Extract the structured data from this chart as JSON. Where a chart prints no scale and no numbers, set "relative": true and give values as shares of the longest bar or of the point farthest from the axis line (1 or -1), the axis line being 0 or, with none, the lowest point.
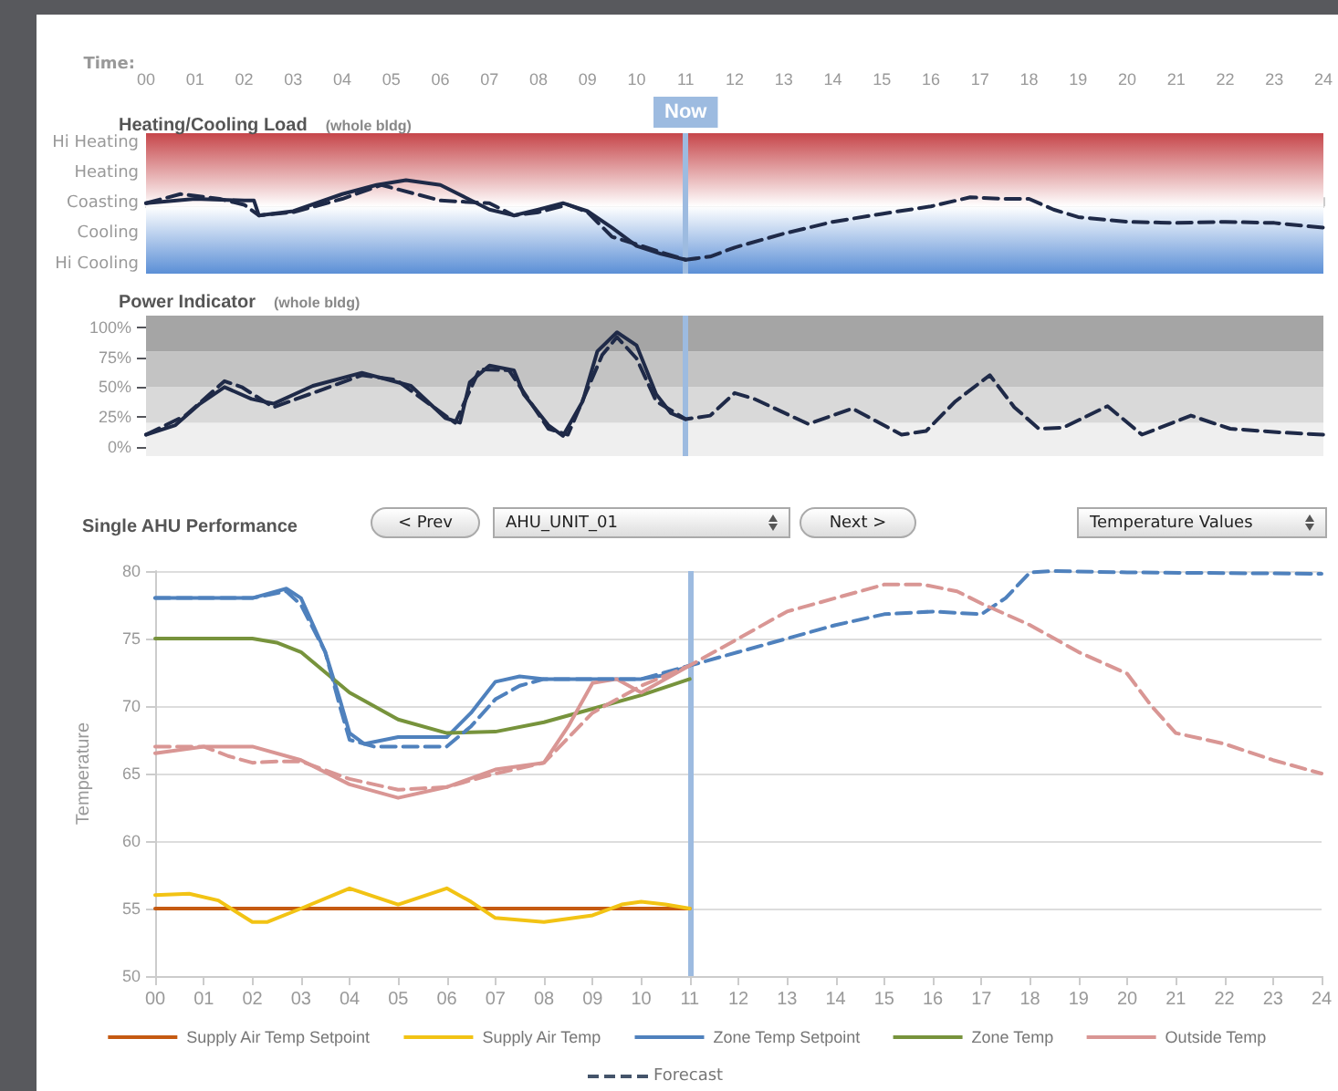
{
  "chart_data": [
    {
      "type": "line",
      "title": "Heating/Cooling Load",
      "subtitle": "(whole bldg)",
      "xlabel": "Time:",
      "xlim": [
        0,
        24
      ],
      "xticks": [
        {
          "value": 0,
          "label": "00"
        },
        {
          "value": 1,
          "label": "01"
        },
        {
          "value": 2,
          "label": "02"
        },
        {
          "value": 3,
          "label": "03"
        },
        {
          "value": 4,
          "label": "04"
        },
        {
          "value": 5,
          "label": "05"
        },
        {
          "value": 6,
          "label": "06"
        },
        {
          "value": 7,
          "label": "07"
        },
        {
          "value": 8,
          "label": "08"
        },
        {
          "value": 9,
          "label": "09"
        },
        10,
        11,
        12,
        13,
        14,
        15,
        16,
        17,
        18,
        19,
        20,
        21,
        22,
        23,
        24
      ],
      "relative": true,
      "annotations": [
        "Hi Heating",
        "Heating",
        "Coasting",
        "Cooling",
        "Hi Cooling"
      ],
      "bands": [
        {
          "axis": "y",
          "from": 0,
          "to": 1.37,
          "label": null,
          "color": "#c6464a"
        },
        {
          "axis": "y",
          "from": -1.26,
          "to": 0,
          "label": null,
          "color": "#5b8fd6"
        }
      ],
      "ref_lines": [
        {
          "axis": "x",
          "value": 11,
          "label": "Now",
          "color": "#9dbbe0"
        }
      ],
      "series": [
        {
          "color": "#1f2a48",
          "line_style": "solid",
          "x": [
            0,
            1,
            2,
            2.2,
            2.3,
            3,
            4,
            4.7,
            5.3,
            6,
            6.5,
            7,
            7.5,
            8,
            8.5,
            9,
            9.5,
            10,
            10.5,
            11
          ],
          "values": [
            0.06,
            0.14,
            0.11,
            0.11,
            -0.17,
            -0.09,
            0.23,
            0.4,
            0.49,
            0.4,
            0.17,
            -0.06,
            -0.17,
            -0.06,
            0.06,
            -0.09,
            -0.4,
            -0.74,
            -0.89,
            -1
          ]
        },
        {
          "color": "#1f2a48",
          "line_style": "dashed",
          "x": [
            0,
            0.7,
            1.5,
            2,
            2.3,
            3,
            4,
            4.8,
            5.5,
            6,
            7,
            7.5,
            8,
            8.6,
            9,
            9.5,
            10,
            10.5,
            11,
            11.5,
            12,
            13,
            14,
            15,
            16,
            16.8,
            17.5,
            18,
            18.5,
            19,
            20,
            21,
            22,
            23,
            24
          ],
          "values": [
            0.06,
            0.23,
            0.14,
            0.03,
            -0.17,
            -0.11,
            0.14,
            0.4,
            0.23,
            0.11,
            0.06,
            -0.17,
            -0.11,
            0.03,
            -0.11,
            -0.57,
            -0.71,
            -0.86,
            -1,
            -0.94,
            -0.77,
            -0.51,
            -0.29,
            -0.14,
            0,
            0.17,
            0.14,
            0.14,
            -0.06,
            -0.2,
            -0.29,
            -0.31,
            -0.29,
            -0.31,
            -0.4
          ]
        }
      ]
    },
    {
      "type": "line",
      "title": "Power Indicator",
      "subtitle": "(whole bldg)",
      "xlim": [
        0,
        24
      ],
      "tick_labels": "y",
      "ylim": [
        -8,
        110
      ],
      "yticks": [
        {
          "value": 0,
          "label": "0%"
        },
        {
          "value": 25,
          "label": "25%"
        },
        {
          "value": 50,
          "label": "50%"
        },
        {
          "value": 75,
          "label": "75%"
        },
        {
          "value": 100,
          "label": "100%"
        }
      ],
      "bands": [
        {
          "axis": "y",
          "from": -8,
          "to": 20,
          "label": null,
          "color": "#efefef"
        },
        {
          "axis": "y",
          "from": 20,
          "to": 50,
          "label": null,
          "color": "#d9d9d9"
        },
        {
          "axis": "y",
          "from": 50,
          "to": 80,
          "label": null,
          "color": "#c3c3c3"
        },
        {
          "axis": "y",
          "from": 80,
          "to": 110,
          "label": null,
          "color": "#a5a5a5"
        }
      ],
      "ref_lines": [
        {
          "axis": "x",
          "value": 11,
          "label": null,
          "color": "#9dbbe0"
        }
      ],
      "series": [
        {
          "color": "#1f2a48",
          "line_style": "solid",
          "x": [
            0,
            0.6,
            1.1,
            1.6,
            2.15,
            2.6,
            3.4,
            4.4,
            5.4,
            6.1,
            6.4,
            6.6,
            7.0,
            7.5,
            7.7,
            8.2,
            8.5,
            8.9,
            9.2,
            9.6,
            10.0,
            10.4,
            10.7,
            11
          ],
          "values": [
            10,
            18,
            36,
            50,
            40,
            36,
            51,
            62,
            51,
            24,
            20,
            54,
            68,
            64,
            44,
            18,
            9,
            38,
            80,
            96,
            85,
            44,
            28,
            23
          ]
        },
        {
          "color": "#1f2a48",
          "line_style": "dashed",
          "x": [
            0,
            0.8,
            1.6,
            1.95,
            2.6,
            4.4,
            5.1,
            6.3,
            6.8,
            7.4,
            8.2,
            8.6,
            9.3,
            9.6,
            10.0,
            10.4,
            11,
            11.5,
            12,
            12.4,
            13.5,
            14.4,
            15.4,
            15.9,
            16.5,
            17.2,
            17.7,
            18.2,
            18.7,
            19.6,
            20.3,
            21.3,
            22.1,
            23.1,
            24
          ],
          "values": [
            10,
            26,
            55,
            50,
            33,
            60,
            56,
            20,
            65,
            64,
            15,
            10,
            77,
            92,
            74,
            38,
            23,
            26,
            45,
            40,
            19,
            32,
            10,
            13,
            38,
            60,
            33,
            15,
            16,
            34,
            10,
            26,
            15,
            12,
            10
          ]
        }
      ]
    },
    {
      "type": "line",
      "title": "Single AHU Performance",
      "ylabel": "Temperature",
      "xlim": [
        0,
        24
      ],
      "xticks": [
        {
          "value": 0,
          "label": "00"
        },
        {
          "value": 1,
          "label": "01"
        },
        {
          "value": 2,
          "label": "02"
        },
        {
          "value": 3,
          "label": "03"
        },
        {
          "value": 4,
          "label": "04"
        },
        {
          "value": 5,
          "label": "05"
        },
        {
          "value": 6,
          "label": "06"
        },
        {
          "value": 7,
          "label": "07"
        },
        {
          "value": 8,
          "label": "08"
        },
        {
          "value": 9,
          "label": "09"
        },
        10,
        11,
        12,
        13,
        14,
        15,
        16,
        17,
        18,
        19,
        20,
        21,
        22,
        23,
        24
      ],
      "ylim": [
        50,
        80
      ],
      "yticks": [
        50,
        55,
        60,
        65,
        70,
        75,
        80
      ],
      "grid": "y",
      "legend": "bottom",
      "ref_lines": [
        {
          "axis": "x",
          "value": 11,
          "label": null,
          "color": "#9dbbe0"
        }
      ],
      "annotations": [
        "< Prev",
        "AHU_UNIT_01",
        "Next >",
        "Temperature Values",
        "Forecast"
      ],
      "series": [
        {
          "name": "Supply Air Temp Setpoint",
          "color": "#c55a11",
          "line_style": "solid",
          "x": [
            0,
            11
          ],
          "values": [
            55,
            55
          ]
        },
        {
          "name": "Supply Air Temp",
          "color": "#f2c314",
          "line_style": "solid",
          "x": [
            0,
            0.7,
            1.3,
            2,
            2.3,
            3,
            4,
            5,
            6,
            6.5,
            7,
            8,
            9,
            9.6,
            10,
            10.5,
            11
          ],
          "values": [
            56,
            56.1,
            55.6,
            54,
            54,
            55,
            56.5,
            55.3,
            56.5,
            55.5,
            54.3,
            54,
            54.5,
            55.3,
            55.5,
            55.3,
            55
          ]
        },
        {
          "name": "Zone Temp Setpoint",
          "color": "#4f81bd",
          "line_style": "solid",
          "x": [
            0,
            2,
            2.7,
            3,
            3.5,
            3.8,
            4,
            4.3,
            5,
            6,
            6.5,
            7,
            7.5,
            8,
            9,
            10,
            10.5,
            11
          ],
          "values": [
            78,
            78,
            78.7,
            78,
            74,
            70.5,
            68,
            67.2,
            67.7,
            67.7,
            69.5,
            71.8,
            72.2,
            72,
            72,
            72,
            72.3,
            73
          ]
        },
        {
          "name": "Zone Temp",
          "color": "#77933c",
          "line_style": "solid",
          "x": [
            0,
            2,
            2.5,
            3,
            3.5,
            4,
            5,
            6,
            7,
            8,
            9,
            10,
            11
          ],
          "values": [
            75,
            75,
            74.7,
            74,
            72.5,
            71,
            69,
            68,
            68.1,
            68.8,
            69.8,
            70.8,
            72
          ]
        },
        {
          "name": "Outside Temp",
          "color": "#d99694",
          "line_style": "solid",
          "x": [
            0,
            1,
            2,
            3,
            4,
            5,
            6,
            7,
            8,
            8.5,
            9,
            9.5,
            10,
            11
          ],
          "values": [
            66.5,
            67,
            67,
            66,
            64.2,
            63.2,
            64,
            65.3,
            65.8,
            68.5,
            71.7,
            72,
            71,
            73
          ]
        },
        {
          "color": "#4f81bd",
          "line_style": "dashed",
          "x": [
            0,
            2,
            2.7,
            3,
            3.5,
            3.8,
            4,
            4.5,
            5,
            6,
            6.5,
            7,
            7.5,
            8,
            9,
            10,
            11,
            12,
            13,
            14,
            15,
            16,
            17,
            17.5,
            18,
            18.5,
            20,
            24
          ],
          "values": [
            78,
            78,
            78.5,
            77.5,
            74,
            70,
            67.5,
            67,
            67,
            67,
            68.5,
            70.5,
            71.5,
            72,
            72,
            72,
            73,
            74,
            75,
            76,
            76.8,
            77,
            76.8,
            78,
            79.9,
            80,
            79.9,
            79.8
          ]
        },
        {
          "color": "#d99694",
          "line_style": "dashed",
          "x": [
            0,
            1,
            1.5,
            2,
            2.5,
            3,
            4,
            5,
            6,
            7,
            8,
            9,
            10,
            11,
            12,
            13,
            14,
            15,
            15.8,
            16.5,
            17,
            18,
            19,
            20,
            20.5,
            21,
            22,
            23,
            24
          ],
          "values": [
            67,
            67,
            66.3,
            65.8,
            65.9,
            65.9,
            64.6,
            63.8,
            64,
            65,
            65.8,
            69.5,
            71.5,
            73,
            75,
            77,
            78,
            79,
            79,
            78.5,
            77.6,
            76,
            74,
            72.4,
            70,
            68,
            67.2,
            66,
            65
          ]
        }
      ]
    }
  ]
}
